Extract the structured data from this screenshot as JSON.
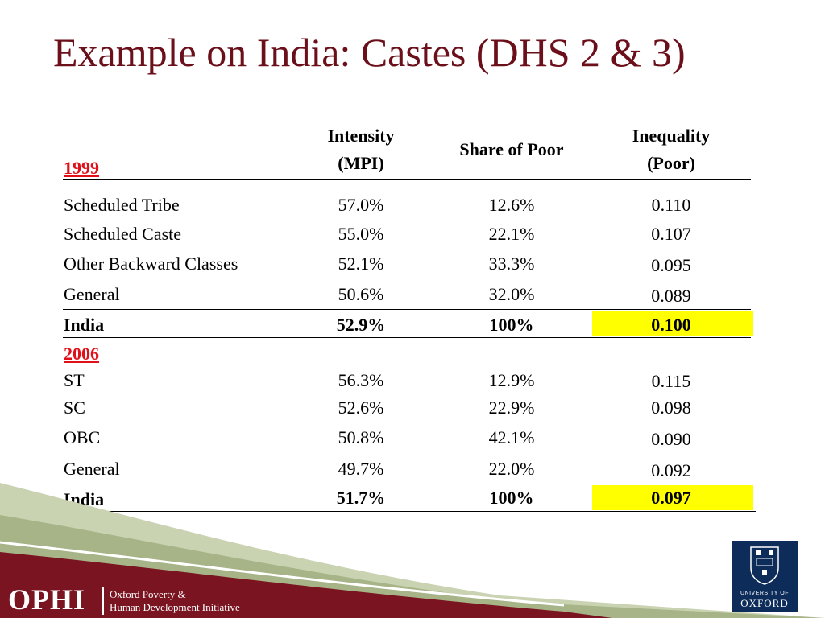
{
  "title": "Example on India: Castes (DHS 2 & 3)",
  "table": {
    "headers": {
      "intensity": [
        "Intensity",
        "(MPI)"
      ],
      "share": "Share of Poor",
      "inequality": [
        "Inequality",
        "(Poor)"
      ]
    },
    "sections": [
      {
        "year": "1999",
        "rows": [
          {
            "group": "Scheduled Tribe",
            "intensity": "57.0%",
            "share": "12.6%",
            "inequality": "0.110"
          },
          {
            "group": "Scheduled Caste",
            "intensity": "55.0%",
            "share": "22.1%",
            "inequality": "0.107"
          },
          {
            "group": "Other Backward Classes",
            "intensity": "52.1%",
            "share": "33.3%",
            "inequality": "0.095"
          },
          {
            "group": "General",
            "intensity": "50.6%",
            "share": "32.0%",
            "inequality": "0.089"
          }
        ],
        "total": {
          "group": "India",
          "intensity": "52.9%",
          "share": "100%",
          "inequality": "0.100"
        }
      },
      {
        "year": "2006",
        "rows": [
          {
            "group": "ST",
            "intensity": "56.3%",
            "share": "12.9%",
            "inequality": "0.115"
          },
          {
            "group": "SC",
            "intensity": "52.6%",
            "share": "22.9%",
            "inequality": "0.098"
          },
          {
            "group": "OBC",
            "intensity": "50.8%",
            "share": "42.1%",
            "inequality": "0.090"
          },
          {
            "group": "General",
            "intensity": "49.7%",
            "share": "22.0%",
            "inequality": "0.092"
          }
        ],
        "total": {
          "group": "India",
          "intensity": "51.7%",
          "share": "100%",
          "inequality": "0.097"
        }
      }
    ]
  },
  "footer": {
    "ophi_logo": "OPHI",
    "ophi_name_line1": "Oxford Poverty &",
    "ophi_name_line2": "Human Development Initiative",
    "oxford_university": "UNIVERSITY OF",
    "oxford_name": "OXFORD"
  },
  "colors": {
    "title": "#6b0f1a",
    "year_label": "#e0101a",
    "highlight": "#ffff00",
    "footer_band": "#7a1420",
    "oxford_blue": "#0d2c5a"
  }
}
